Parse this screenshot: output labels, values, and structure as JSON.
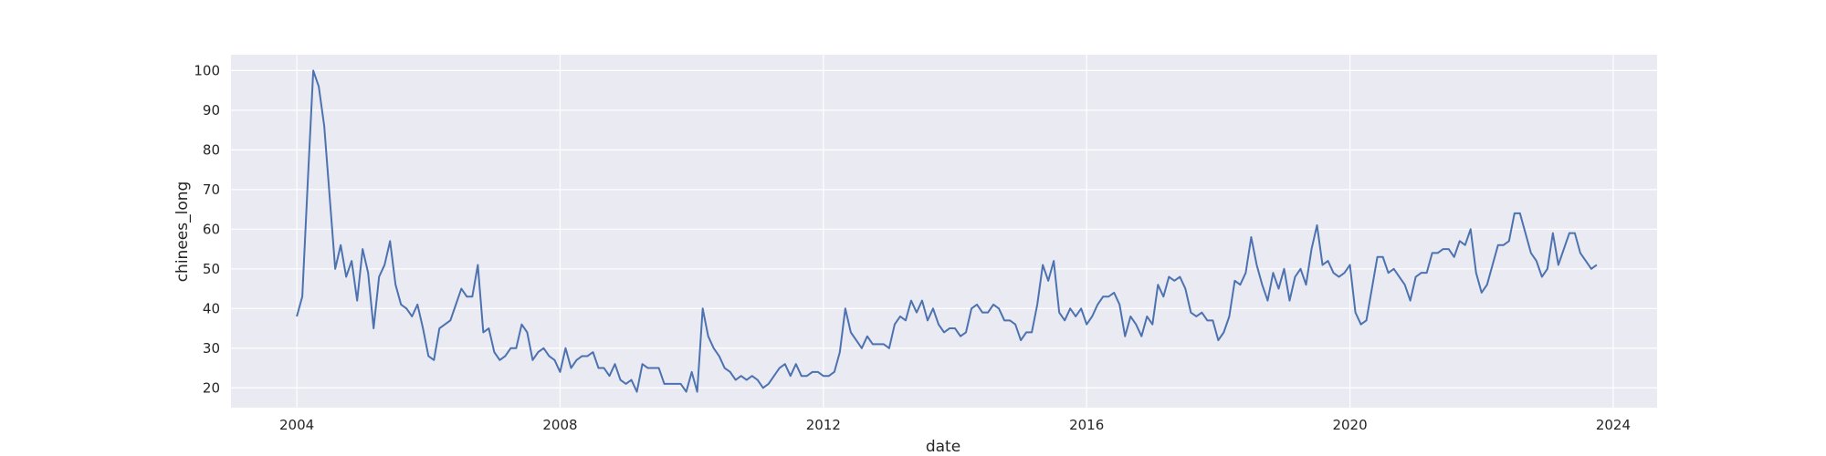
{
  "chart_data": {
    "type": "line",
    "xlabel": "date",
    "ylabel": "chinees_long",
    "xlim": [
      "2003-01-01",
      "2024-09-01"
    ],
    "ylim": [
      15,
      104
    ],
    "x_ticks": [
      2004,
      2008,
      2012,
      2016,
      2020,
      2024
    ],
    "y_ticks": [
      20,
      30,
      40,
      50,
      60,
      70,
      80,
      90,
      100
    ],
    "grid": true,
    "colors": {
      "plot_background": "#eaeaf2",
      "grid": "#ffffff",
      "line": "#4c72b0"
    },
    "start": "2004-01",
    "frequency": "monthly",
    "series": [
      {
        "values": [
          38,
          43,
          72,
          100,
          96,
          86,
          68,
          50,
          56,
          48,
          52,
          42,
          55,
          49,
          35,
          48,
          51,
          57,
          46,
          41,
          40,
          38,
          41,
          35,
          28,
          27,
          35,
          36,
          37,
          41,
          45,
          43,
          43,
          51,
          34,
          35,
          29,
          27,
          28,
          30,
          30,
          36,
          34,
          27,
          29,
          30,
          28,
          27,
          24,
          30,
          25,
          27,
          28,
          28,
          29,
          25,
          25,
          23,
          26,
          22,
          21,
          22,
          19,
          26,
          25,
          25,
          25,
          21,
          21,
          21,
          21,
          19,
          24,
          19,
          40,
          33,
          30,
          28,
          25,
          24,
          22,
          23,
          22,
          23,
          22,
          20,
          21,
          23,
          25,
          26,
          23,
          26,
          23,
          23,
          24,
          24,
          23,
          23,
          24,
          29,
          40,
          34,
          32,
          30,
          33,
          31,
          31,
          31,
          30,
          36,
          38,
          37,
          42,
          39,
          42,
          37,
          40,
          36,
          34,
          35,
          35,
          33,
          34,
          40,
          41,
          39,
          39,
          41,
          40,
          37,
          37,
          36,
          32,
          34,
          34,
          41,
          51,
          47,
          52,
          39,
          37,
          40,
          38,
          40,
          36,
          38,
          41,
          43,
          43,
          44,
          41,
          33,
          38,
          36,
          33,
          38,
          36,
          46,
          43,
          48,
          47,
          48,
          45,
          39,
          38,
          39,
          37,
          37,
          32,
          34,
          38,
          47,
          46,
          49,
          58,
          51,
          46,
          42,
          49,
          45,
          50,
          42,
          48,
          50,
          46,
          55,
          61,
          51,
          52,
          49,
          48,
          49,
          51,
          39,
          36,
          37,
          45,
          53,
          53,
          49,
          50,
          48,
          46,
          42,
          48,
          49,
          49,
          54,
          54,
          55,
          55,
          53,
          57,
          56,
          60,
          49,
          44,
          46,
          51,
          56,
          56,
          57,
          64,
          64,
          59,
          54,
          52,
          48,
          50,
          59,
          51,
          55,
          59,
          59,
          54,
          52,
          50,
          51
        ]
      }
    ]
  }
}
